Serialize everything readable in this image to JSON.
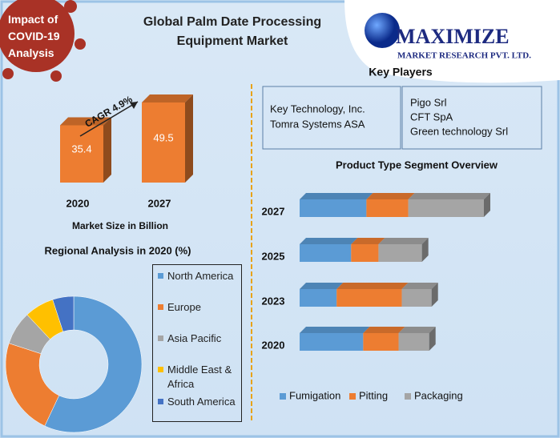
{
  "header": {
    "covid_badge": "Impact of COVID-19 Analysis",
    "title": "Global Palm Date Processing Equipment Market",
    "logo_name": "MAXIMIZE",
    "logo_tagline": "MARKET RESEARCH PVT. LTD."
  },
  "key_players": {
    "title": "Key Players",
    "columns": [
      [
        "Key Technology, Inc.",
        "Tomra Systems ASA"
      ],
      [
        "Pigo Srl",
        "CFT SpA",
        "Green technology Srl"
      ]
    ]
  },
  "chart_data": [
    {
      "type": "bar",
      "categories": [
        "2020",
        "2027"
      ],
      "values": [
        35.4,
        49.5
      ],
      "color": "#ed7d31",
      "x_label": "Market Size in Billion",
      "annotation": "CAGR 4.9%"
    },
    {
      "type": "pie",
      "donut": true,
      "title": "Regional Analysis in 2020 (%)",
      "categories": [
        "North America",
        "Europe",
        "Asia Pacific",
        "Middle East & Africa",
        "South America"
      ],
      "values": [
        57,
        23,
        8,
        7,
        5
      ],
      "colors": [
        "#5b9bd5",
        "#ed7d31",
        "#a5a5a5",
        "#ffc000",
        "#4472c4"
      ],
      "legend": "right"
    },
    {
      "type": "bar",
      "horizontal": true,
      "stacked": true,
      "title": "Product Type Segment Overview",
      "categories": [
        "2027",
        "2025",
        "2023",
        "2020"
      ],
      "series": [
        {
          "name": "Fumigation",
          "color": "#5b9bd5",
          "values": [
            83,
            64,
            46,
            79
          ]
        },
        {
          "name": "Pitting",
          "color": "#ed7d31",
          "values": [
            52,
            34,
            81,
            44
          ]
        },
        {
          "name": "Packaging",
          "color": "#a5a5a5",
          "values": [
            94,
            54,
            37,
            38
          ]
        }
      ],
      "legend": "bottom"
    }
  ]
}
